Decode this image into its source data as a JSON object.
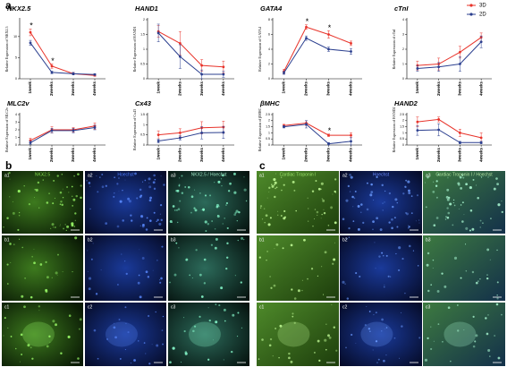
{
  "chart_data": [
    {
      "type": "line",
      "title": "NKX2.5",
      "ylabel": "Relative Expression of NKX2.5",
      "categories": [
        "1week",
        "2weeks",
        "3weeks",
        "4weeks"
      ],
      "ylim": [
        0,
        14
      ],
      "yticks": [
        0,
        5,
        10
      ],
      "series": [
        {
          "name": "3D",
          "color": "#e8332a",
          "values": [
            11,
            3,
            1.2,
            0.8
          ],
          "errors": [
            0.8,
            0.5,
            0.3,
            0.2
          ]
        },
        {
          "name": "2D",
          "color": "#2b3f8f",
          "values": [
            8.5,
            1.5,
            1.2,
            1
          ],
          "errors": [
            0.6,
            0.3,
            0.3,
            0.2
          ]
        }
      ],
      "annotations": [
        {
          "text": "*",
          "x": "1week"
        },
        {
          "text": "*",
          "x": "2weeks"
        }
      ]
    },
    {
      "type": "line",
      "title": "HAND1",
      "ylabel": "Relative Expression of HAND1",
      "categories": [
        "1week",
        "2weeks",
        "3weeks",
        "4weeks"
      ],
      "ylim": [
        0,
        2
      ],
      "yticks": [
        0,
        0.5,
        1,
        1.5,
        2
      ],
      "series": [
        {
          "name": "3D",
          "color": "#e8332a",
          "values": [
            1.6,
            1.2,
            0.45,
            0.4
          ],
          "errors": [
            0.2,
            0.4,
            0.2,
            0.2
          ]
        },
        {
          "name": "2D",
          "color": "#2b3f8f",
          "values": [
            1.55,
            0.75,
            0.15,
            0.15
          ],
          "errors": [
            0.3,
            0.4,
            0.15,
            0.1
          ]
        }
      ]
    },
    {
      "type": "line",
      "title": "GATA4",
      "ylabel": "Relative Expression of GATA4",
      "categories": [
        "1week",
        "2weeks",
        "3weeks",
        "4weeks"
      ],
      "ylim": [
        0,
        8
      ],
      "yticks": [
        0,
        2,
        4,
        6,
        8
      ],
      "series": [
        {
          "name": "3D",
          "color": "#e8332a",
          "values": [
            1,
            7,
            6,
            4.8
          ],
          "errors": [
            0.3,
            0.3,
            0.5,
            0.3
          ]
        },
        {
          "name": "2D",
          "color": "#2b3f8f",
          "values": [
            0.8,
            5.5,
            4,
            3.7
          ],
          "errors": [
            0.2,
            0.3,
            0.3,
            0.4
          ]
        }
      ],
      "annotations": [
        {
          "text": "*",
          "x": "2weeks"
        },
        {
          "text": "*",
          "x": "3weeks"
        }
      ]
    },
    {
      "type": "line",
      "title": "cTnI",
      "ylabel": "Relative Expression of cTnI",
      "categories": [
        "1week",
        "2weeks",
        "3weeks",
        "4weeks"
      ],
      "ylim": [
        0,
        4
      ],
      "yticks": [
        0,
        1,
        2,
        3,
        4
      ],
      "legend": "upper right",
      "series": [
        {
          "name": "3D",
          "color": "#e8332a",
          "values": [
            0.9,
            1,
            1.8,
            2.8
          ],
          "errors": [
            0.3,
            0.4,
            0.4,
            0.3
          ]
        },
        {
          "name": "2D",
          "color": "#2b3f8f",
          "values": [
            0.7,
            0.8,
            1,
            2.5
          ],
          "errors": [
            0.2,
            0.3,
            0.5,
            0.4
          ]
        }
      ]
    },
    {
      "type": "line",
      "title": "MLC2v",
      "ylabel": "Relative Expression of MLC2v",
      "categories": [
        "1week",
        "2weeks",
        "3weeks",
        "4weeks"
      ],
      "ylim": [
        0,
        4
      ],
      "yticks": [
        0,
        1,
        2,
        3,
        4
      ],
      "series": [
        {
          "name": "3D",
          "color": "#e8332a",
          "values": [
            0.6,
            2,
            2,
            2.5
          ],
          "errors": [
            0.3,
            0.4,
            0.3,
            0.4
          ]
        },
        {
          "name": "2D",
          "color": "#2b3f8f",
          "values": [
            0.3,
            1.9,
            1.9,
            2.3
          ],
          "errors": [
            0.2,
            0.3,
            0.3,
            0.3
          ]
        }
      ]
    },
    {
      "type": "line",
      "title": "Cx43",
      "ylabel": "Relative Expression of Cx43",
      "categories": [
        "1week",
        "2weeks",
        "3weeks",
        "4weeks"
      ],
      "ylim": [
        0,
        1.5
      ],
      "yticks": [
        0,
        0.5,
        1,
        1.5
      ],
      "series": [
        {
          "name": "3D",
          "color": "#e8332a",
          "values": [
            0.5,
            0.6,
            0.85,
            0.88
          ],
          "errors": [
            0.2,
            0.2,
            0.3,
            0.3
          ]
        },
        {
          "name": "2D",
          "color": "#2b3f8f",
          "values": [
            0.2,
            0.35,
            0.6,
            0.62
          ],
          "errors": [
            0.1,
            0.1,
            0.3,
            0.3
          ]
        }
      ]
    },
    {
      "type": "line",
      "title": "βMHC",
      "ylabel": "Relative Expression of βMHC",
      "categories": [
        "1week",
        "2weeks",
        "3weeks",
        "4weeks"
      ],
      "ylim": [
        0,
        2.5
      ],
      "yticks": [
        0,
        0.5,
        1,
        1.5,
        2,
        2.5
      ],
      "series": [
        {
          "name": "3D",
          "color": "#e8332a",
          "values": [
            1.6,
            1.8,
            0.8,
            0.8
          ],
          "errors": [
            0.1,
            0.2,
            0.1,
            0.2
          ]
        },
        {
          "name": "2D",
          "color": "#2b3f8f",
          "values": [
            1.5,
            1.7,
            0.1,
            0.3
          ],
          "errors": [
            0.1,
            0.3,
            0.1,
            0.3
          ]
        }
      ],
      "annotations": [
        {
          "text": "*",
          "x": "3weeks"
        }
      ]
    },
    {
      "type": "line",
      "title": "HAND2",
      "ylabel": "Relative Expression of HAND2",
      "categories": [
        "1week",
        "2weeks",
        "3weeks",
        "4weeks"
      ],
      "ylim": [
        0,
        2.5
      ],
      "yticks": [
        0,
        0.5,
        1,
        1.5,
        2,
        2.5
      ],
      "series": [
        {
          "name": "3D",
          "color": "#e8332a",
          "values": [
            1.9,
            2.1,
            1,
            0.6
          ],
          "errors": [
            0.4,
            0.2,
            0.3,
            0.4
          ]
        },
        {
          "name": "2D",
          "color": "#2b3f8f",
          "values": [
            1.2,
            1.25,
            0.2,
            0.2
          ],
          "errors": [
            0.4,
            0.5,
            0.1,
            0.1
          ]
        }
      ]
    }
  ],
  "figure": {
    "panel_labels": [
      "a",
      "b",
      "c"
    ],
    "b": {
      "headers": [
        "NKX2.5",
        "Hoechst",
        "NKX2.5 / Hoechst"
      ],
      "cells": [
        [
          "a1",
          "a2",
          "a3"
        ],
        [
          "b1",
          "b2",
          "b3"
        ],
        [
          "c1",
          "c2",
          "c3"
        ]
      ]
    },
    "c": {
      "headers": [
        "Cardiac Troponin I",
        "Hoechst",
        "Cardiac Troponin I / Hoechst"
      ],
      "cells": [
        [
          "a1",
          "a2",
          "a3"
        ],
        [
          "b1",
          "b2",
          "b3"
        ],
        [
          "c1",
          "c2",
          "c3"
        ]
      ]
    }
  }
}
